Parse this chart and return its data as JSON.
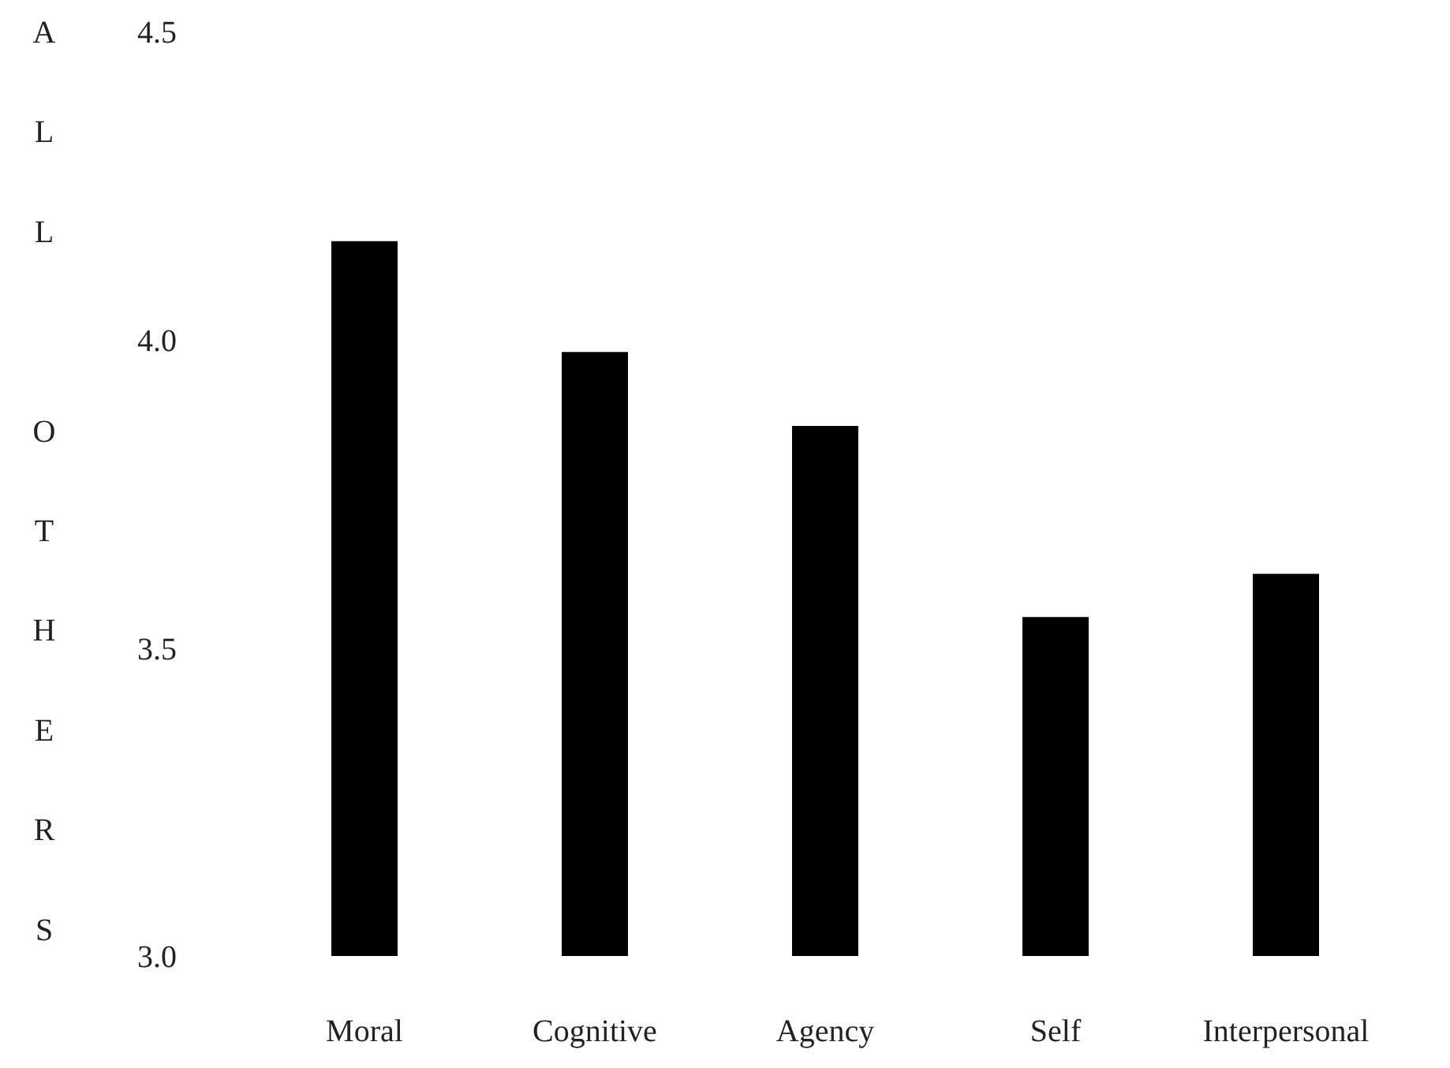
{
  "chart_data": {
    "type": "bar",
    "ylabel": "ALL OTHERS",
    "categories": [
      "Moral",
      "Cognitive",
      "Agency",
      "Self",
      "Interpersonal"
    ],
    "values": [
      4.16,
      3.98,
      3.86,
      3.55,
      3.62
    ],
    "color": "#000000",
    "ylim": [
      3.0,
      4.5
    ],
    "yticks": [
      {
        "value": 3.0,
        "label": "3.0"
      },
      {
        "value": 3.5,
        "label": "3.5"
      },
      {
        "value": 4.0,
        "label": "4.0"
      },
      {
        "value": 4.5,
        "label": "4.5"
      }
    ],
    "grid": false,
    "legend": false
  }
}
